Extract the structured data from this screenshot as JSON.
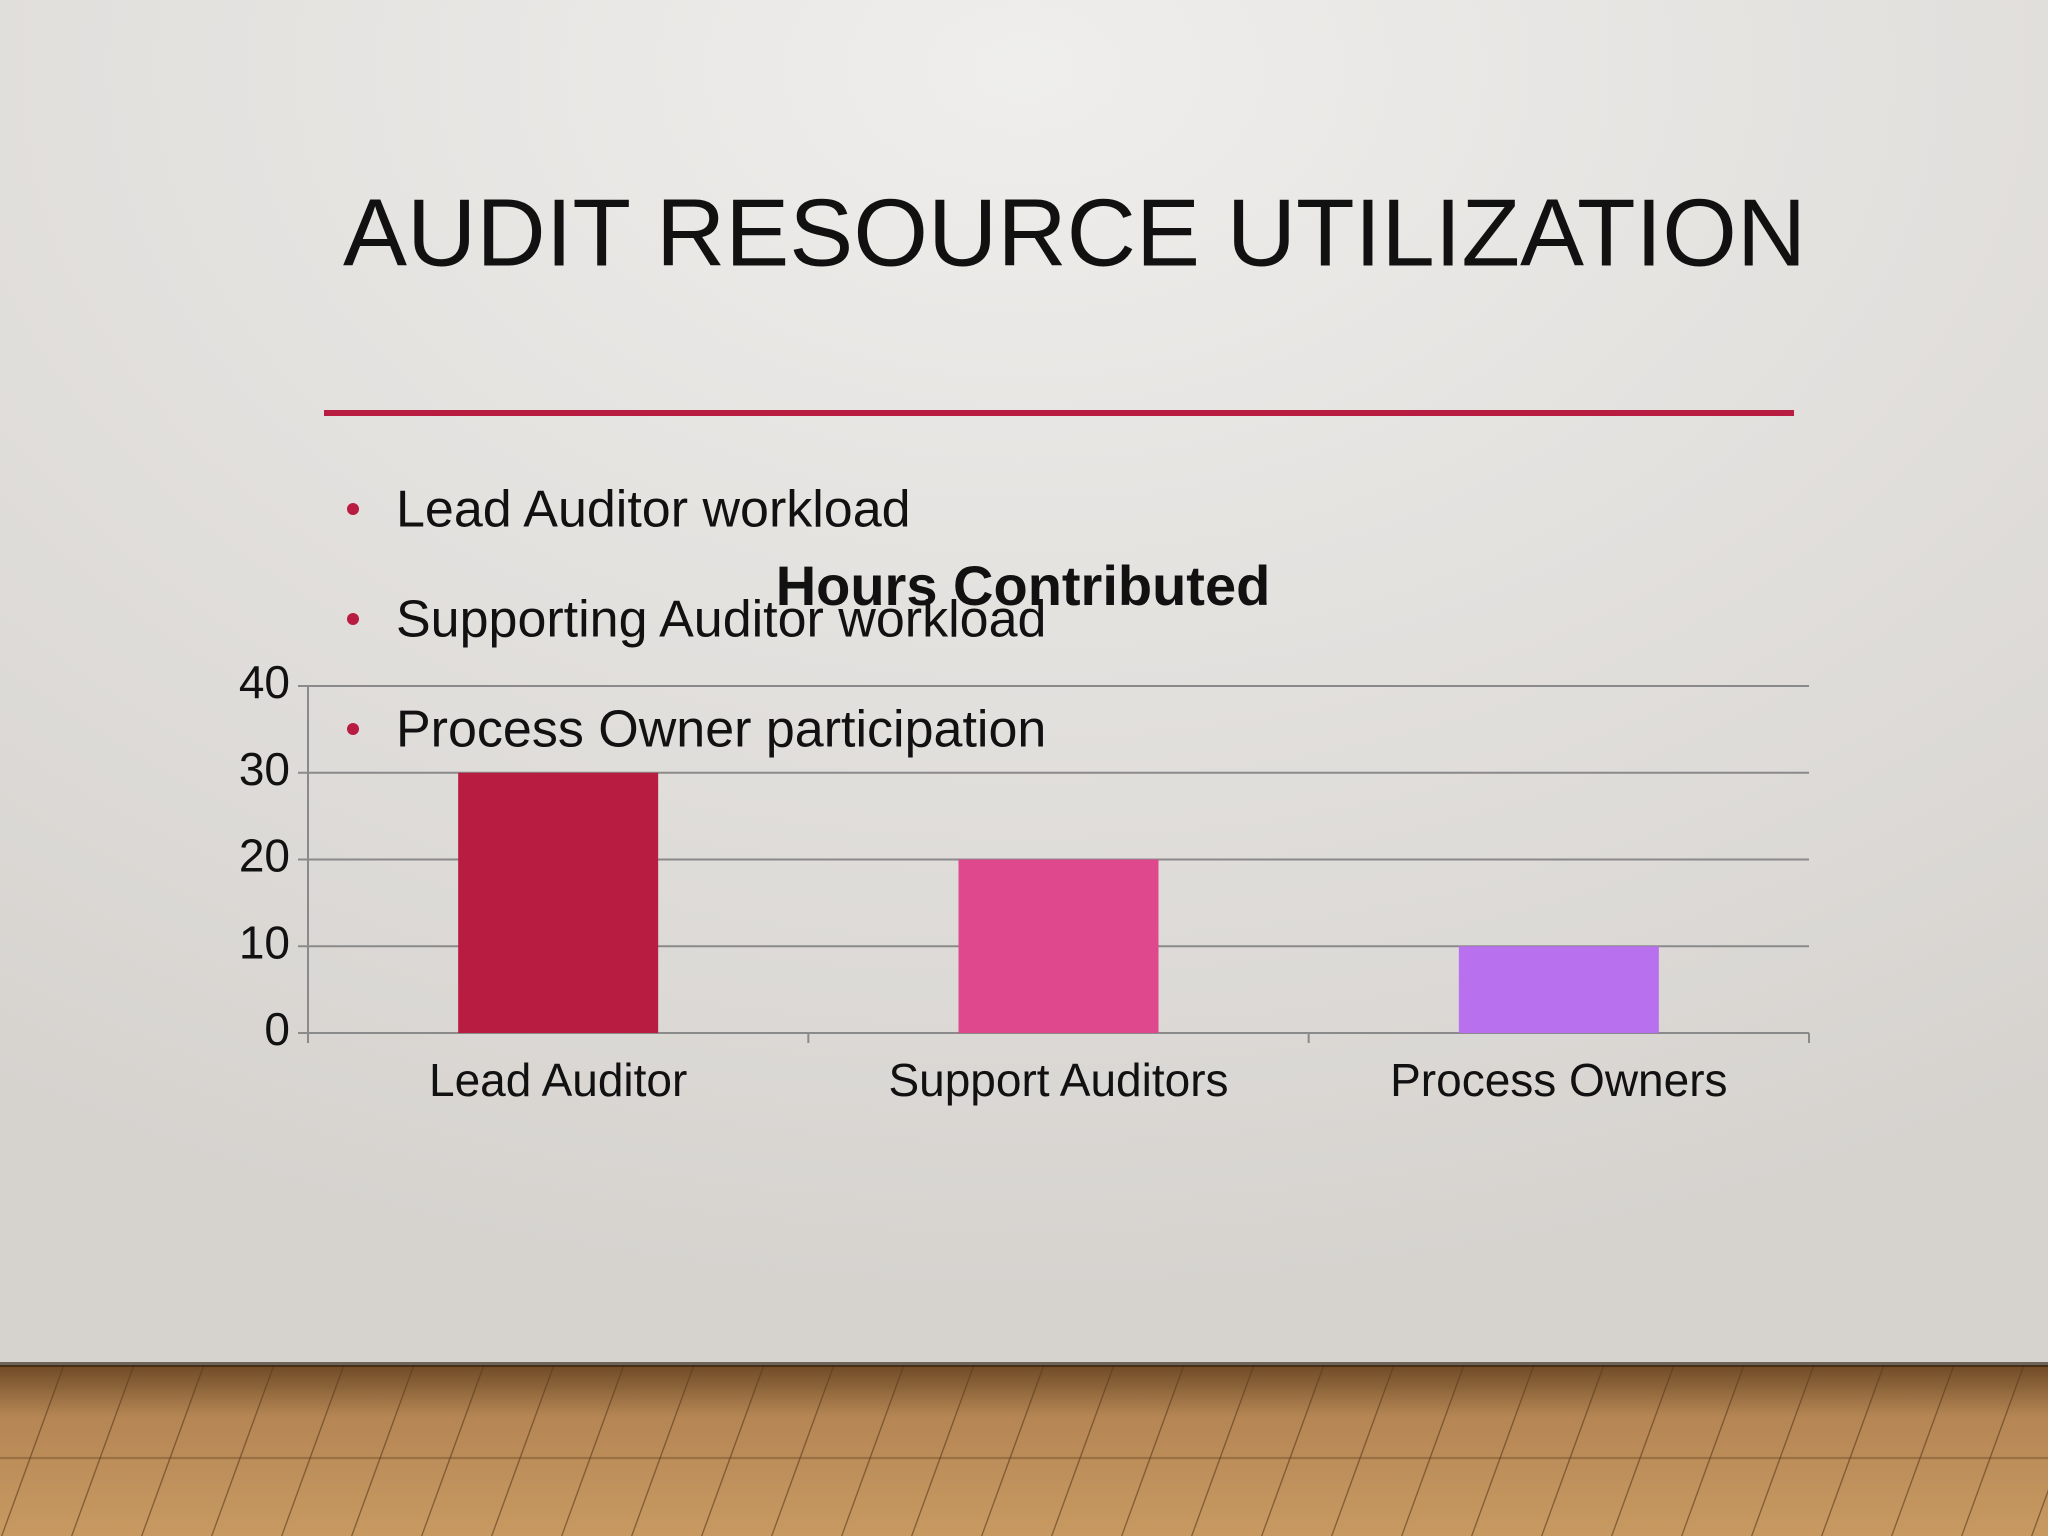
{
  "title": "AUDIT RESOURCE UTILIZATION",
  "bullets": [
    "Lead Auditor workload",
    "Supporting Auditor workload",
    "Process Owner participation"
  ],
  "chart_data": {
    "type": "bar",
    "title": "Hours Contributed",
    "categories": [
      "Lead Auditor",
      "Support Auditors",
      "Process Owners"
    ],
    "values": [
      30,
      20,
      10
    ],
    "colors": [
      "#b81c40",
      "#e0488e",
      "#b870ee"
    ],
    "ylim": [
      0,
      40
    ],
    "yticks": [
      0,
      10,
      20,
      30,
      40
    ],
    "grid": true
  }
}
